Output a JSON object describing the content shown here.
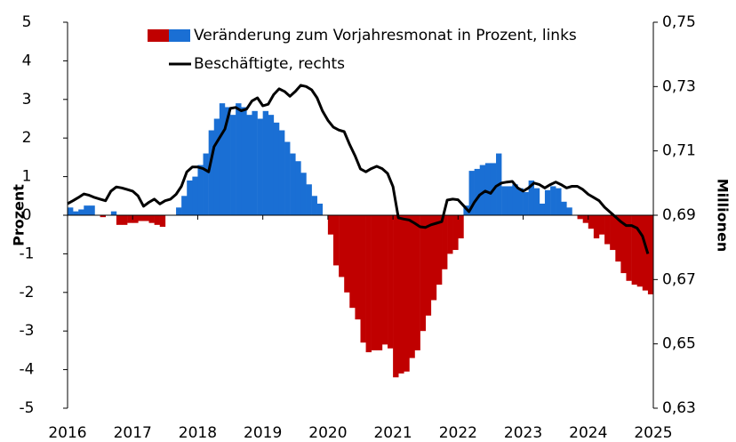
{
  "chart_data": {
    "type": "bar_line",
    "x": [
      2016,
      2016.083,
      2016.167,
      2016.25,
      2016.333,
      2016.417,
      2016.5,
      2016.583,
      2016.667,
      2016.75,
      2016.833,
      2016.917,
      2017,
      2017.083,
      2017.167,
      2017.25,
      2017.333,
      2017.417,
      2017.5,
      2017.583,
      2017.667,
      2017.75,
      2017.833,
      2017.917,
      2018,
      2018.083,
      2018.167,
      2018.25,
      2018.333,
      2018.417,
      2018.5,
      2018.583,
      2018.667,
      2018.75,
      2018.833,
      2018.917,
      2019,
      2019.083,
      2019.167,
      2019.25,
      2019.333,
      2019.417,
      2019.5,
      2019.583,
      2019.667,
      2019.75,
      2019.833,
      2019.917,
      2020,
      2020.083,
      2020.167,
      2020.25,
      2020.333,
      2020.417,
      2020.5,
      2020.583,
      2020.667,
      2020.75,
      2020.833,
      2020.917,
      2021,
      2021.083,
      2021.167,
      2021.25,
      2021.333,
      2021.417,
      2021.5,
      2021.583,
      2021.667,
      2021.75,
      2021.833,
      2021.917,
      2022,
      2022.083,
      2022.167,
      2022.25,
      2022.333,
      2022.417,
      2022.5,
      2022.583,
      2022.667,
      2022.75,
      2022.833,
      2022.917,
      2023,
      2023.083,
      2023.167,
      2023.25,
      2023.333,
      2023.417,
      2023.5,
      2023.583,
      2023.667,
      2023.75,
      2023.833,
      2023.917,
      2024,
      2024.083,
      2024.167,
      2024.25,
      2024.333,
      2024.417,
      2024.5,
      2024.583,
      2024.667,
      2024.75,
      2024.833,
      2024.917
    ],
    "series": [
      {
        "name": "Veränderung zum Vorjahresmonat in Prozent, links",
        "kind": "bar",
        "color": "#1a6fd4",
        "negative_color": "#c00000",
        "values": [
          0.2,
          0.1,
          0.15,
          0.25,
          0.25,
          0,
          -0.05,
          0,
          0.1,
          -0.25,
          -0.25,
          -0.2,
          -0.2,
          -0.15,
          -0.15,
          -0.2,
          -0.25,
          -0.3,
          0,
          0,
          0.2,
          0.5,
          0.9,
          1.0,
          1.3,
          1.6,
          2.2,
          2.5,
          2.9,
          2.8,
          2.6,
          2.9,
          2.8,
          2.6,
          2.7,
          2.5,
          2.7,
          2.6,
          2.4,
          2.2,
          1.9,
          1.6,
          1.4,
          1.1,
          0.8,
          0.5,
          0.3,
          0,
          -0.5,
          -1.3,
          -1.6,
          -2.0,
          -2.4,
          -2.7,
          -3.3,
          -3.55,
          -3.5,
          -3.5,
          -3.35,
          -3.45,
          -4.2,
          -4.1,
          -4.05,
          -3.7,
          -3.5,
          -3.0,
          -2.6,
          -2.2,
          -1.8,
          -1.4,
          -1.0,
          -0.9,
          -0.6,
          0.25,
          1.15,
          1.2,
          1.3,
          1.35,
          1.35,
          1.6,
          0.75,
          0.75,
          0.8,
          0.7,
          0.6,
          0.9,
          0.7,
          0.3,
          0.65,
          0.75,
          0.7,
          0.35,
          0.2,
          0,
          -0.1,
          -0.2,
          -0.35,
          -0.6,
          -0.5,
          -0.75,
          -0.9,
          -1.2,
          -1.5,
          -1.7,
          -1.8,
          -1.85,
          -1.95,
          -2.05
        ]
      },
      {
        "name": "Beschäftigte, rechts",
        "kind": "line",
        "axis": "y2",
        "color": "#000000",
        "values": [
          0.6936,
          0.6945,
          0.6955,
          0.6966,
          0.6962,
          0.6955,
          0.695,
          0.6945,
          0.6975,
          0.6988,
          0.6985,
          0.698,
          0.6975,
          0.696,
          0.6928,
          0.694,
          0.695,
          0.6935,
          0.6945,
          0.695,
          0.6965,
          0.699,
          0.7035,
          0.705,
          0.705,
          0.7045,
          0.7035,
          0.7113,
          0.714,
          0.7168,
          0.7232,
          0.7235,
          0.7225,
          0.723,
          0.7255,
          0.7265,
          0.724,
          0.7245,
          0.7275,
          0.7293,
          0.7285,
          0.727,
          0.7285,
          0.7304,
          0.73,
          0.729,
          0.7265,
          0.7224,
          0.7195,
          0.7174,
          0.7165,
          0.716,
          0.712,
          0.7085,
          0.7044,
          0.7035,
          0.7045,
          0.7052,
          0.7045,
          0.703,
          0.6989,
          0.6892,
          0.6888,
          0.6885,
          0.6875,
          0.6864,
          0.6862,
          0.687,
          0.6875,
          0.688,
          0.6947,
          0.695,
          0.6948,
          0.693,
          0.6911,
          0.694,
          0.6963,
          0.6975,
          0.6968,
          0.699,
          0.7,
          0.7003,
          0.7005,
          0.6985,
          0.6975,
          0.6985,
          0.7,
          0.6995,
          0.6985,
          0.6995,
          0.7003,
          0.6995,
          0.6985,
          0.699,
          0.699,
          0.698,
          0.6965,
          0.6955,
          0.6945,
          0.6925,
          0.691,
          0.6895,
          0.688,
          0.6868,
          0.6868,
          0.686,
          0.6835,
          0.678
        ]
      }
    ],
    "xlim": [
      2016,
      2025
    ],
    "xticks": [
      2016,
      2017,
      2018,
      2019,
      2020,
      2021,
      2022,
      2023,
      2024,
      2025
    ],
    "ylim": [
      -5,
      5
    ],
    "yticks": [
      -5,
      -4,
      -3,
      -2,
      -1,
      0,
      1,
      2,
      3,
      4,
      5
    ],
    "y2lim": [
      0.63,
      0.75
    ],
    "y2ticks": [
      {
        "value": 0.63,
        "label": "0,63"
      },
      {
        "value": 0.65,
        "label": "0,65"
      },
      {
        "value": 0.67,
        "label": "0,67"
      },
      {
        "value": 0.69,
        "label": "0,69"
      },
      {
        "value": 0.71,
        "label": "0,71"
      },
      {
        "value": 0.73,
        "label": "0,73"
      },
      {
        "value": 0.75,
        "label": "0,75"
      }
    ],
    "ylabel": "Prozent",
    "y2label": "Millionen",
    "legend": "top",
    "grid": false
  }
}
